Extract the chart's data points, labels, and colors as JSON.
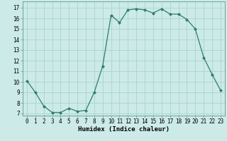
{
  "x": [
    0,
    1,
    2,
    3,
    4,
    5,
    6,
    7,
    8,
    9,
    10,
    11,
    12,
    13,
    14,
    15,
    16,
    17,
    18,
    19,
    20,
    21,
    22,
    23
  ],
  "y": [
    10.1,
    9.0,
    7.7,
    7.1,
    7.1,
    7.5,
    7.2,
    7.3,
    9.0,
    11.5,
    16.3,
    15.6,
    16.8,
    16.9,
    16.8,
    16.5,
    16.9,
    16.4,
    16.4,
    15.9,
    15.0,
    12.3,
    10.7,
    9.2
  ],
  "line_color": "#2e7d6e",
  "marker": "D",
  "marker_size": 2.0,
  "bg_color": "#cceae7",
  "grid_color": "#aad4d0",
  "xlabel": "Humidex (Indice chaleur)",
  "ylim": [
    6.8,
    17.6
  ],
  "xlim": [
    -0.5,
    23.5
  ],
  "yticks": [
    7,
    8,
    9,
    10,
    11,
    12,
    13,
    14,
    15,
    16,
    17
  ],
  "xticks": [
    0,
    1,
    2,
    3,
    4,
    5,
    6,
    7,
    8,
    9,
    10,
    11,
    12,
    13,
    14,
    15,
    16,
    17,
    18,
    19,
    20,
    21,
    22,
    23
  ],
  "label_fontsize": 6.5,
  "tick_fontsize": 5.5
}
